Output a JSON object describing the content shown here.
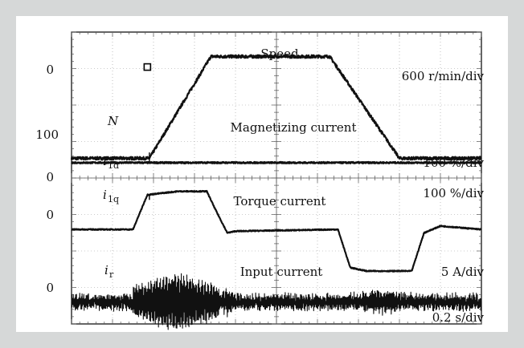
{
  "chart_data": {
    "type": "line",
    "title": "",
    "scope_type": "oscilloscope traces",
    "grid": true,
    "colors": {
      "frame": "#e8eaea",
      "panel": "#ffffff",
      "trace": "#111111",
      "grid": "#999999"
    },
    "time_scale": "0.2 s/div",
    "time_divisions": 10,
    "traces": [
      {
        "id": "speed",
        "symbol": "N",
        "symbol_sub": "",
        "name": "Speed",
        "scale": "600 r/min/div",
        "zero_label": "0",
        "extra_label": "100",
        "noise": 0.3,
        "x": [
          0,
          1.9,
          3.4,
          6.3,
          8.0,
          10
        ],
        "y": [
          -3.1,
          -3.1,
          0,
          0,
          -3.1,
          -3.1
        ]
      },
      {
        "id": "magnetizing",
        "symbol": "i",
        "symbol_sub": "1d",
        "name": "Magnetizing current",
        "scale": "100 %/div",
        "zero_label": "",
        "noise": 0.15,
        "x": [
          0,
          10
        ],
        "y": [
          0,
          0
        ]
      },
      {
        "id": "torque",
        "symbol": "i",
        "symbol_sub": "1q",
        "name": "Torque current",
        "scale": "100 %/div",
        "zero_label": "0",
        "top_label": "0",
        "noise": 0.1,
        "x": [
          0,
          1.5,
          1.85,
          2.6,
          3.3,
          3.5,
          3.8,
          4.0,
          6.5,
          6.8,
          7.2,
          8.3,
          8.6,
          9.0,
          10
        ],
        "y": [
          0,
          0,
          1.0,
          1.1,
          1.1,
          0.6,
          -0.1,
          -0.05,
          0,
          -1.1,
          -1.2,
          -1.2,
          -0.1,
          0.1,
          0
        ],
        "offset": -1.35
      },
      {
        "id": "input",
        "symbol": "i",
        "symbol_sub": "r",
        "name": "Input current",
        "scale": "5 A/div",
        "zero_label": "0",
        "noise": 0.2,
        "burst": [
          {
            "x0": 1.5,
            "x1": 3.6,
            "amp": 0.8
          },
          {
            "x0": 3.6,
            "x1": 4.0,
            "amp": 0.35
          },
          {
            "x0": 6.5,
            "x1": 8.6,
            "amp": 0.3
          }
        ]
      }
    ]
  }
}
